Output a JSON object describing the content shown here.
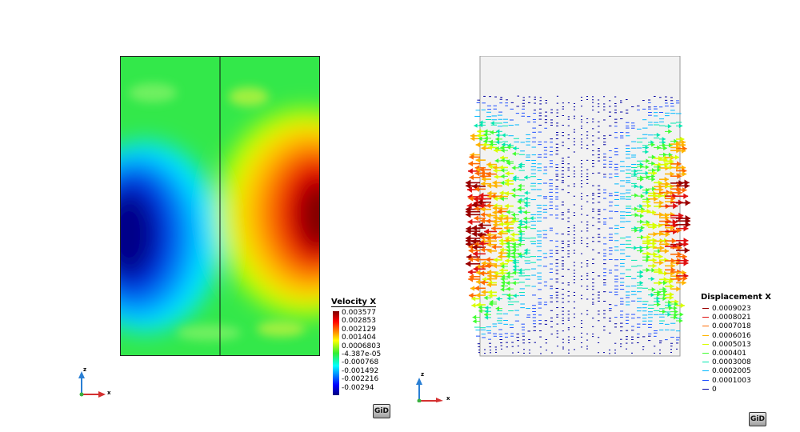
{
  "left_legend": {
    "title": "Velocity X",
    "ticks": [
      "0.003577",
      "0.002853",
      "0.002129",
      "0.001404",
      "0.0006803",
      "-4.387e-05",
      "-0.000768",
      "-0.001492",
      "-0.002216",
      "-0.00294"
    ]
  },
  "right_legend": {
    "title": "Displacement X",
    "items": [
      {
        "label": "0.0009023",
        "color": "#9a0000"
      },
      {
        "label": "0.0008021",
        "color": "#e01010"
      },
      {
        "label": "0.0007018",
        "color": "#ff6a00"
      },
      {
        "label": "0.0006016",
        "color": "#ffb400"
      },
      {
        "label": "0.0005013",
        "color": "#d8ff00"
      },
      {
        "label": "0.000401",
        "color": "#40ff30"
      },
      {
        "label": "0.0003008",
        "color": "#00e8b0"
      },
      {
        "label": "0.0002005",
        "color": "#00b8ff"
      },
      {
        "label": "0.0001003",
        "color": "#2050ff"
      },
      {
        "label": "0",
        "color": "#0000a0"
      }
    ]
  },
  "axes": {
    "z_label": "z",
    "x_label": "x"
  },
  "logo_text": "GiD",
  "colors": {
    "min": "#000080",
    "mid": "#33ee33",
    "max": "#800000",
    "panel_background": "#f2f2f2"
  }
}
